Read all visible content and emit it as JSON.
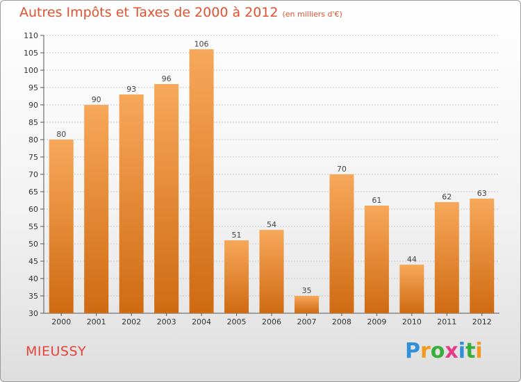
{
  "title": "Autres Impôts et Taxes de 2000 à 2012",
  "unit": "(en milliers d'€)",
  "town": "MIEUSSY",
  "brand": {
    "letters": [
      "P",
      "r",
      "o",
      "x",
      "i",
      "t",
      "i"
    ],
    "colors": [
      "#2f8fd8",
      "#f39a1e",
      "#3aae3a",
      "#e73a8a",
      "#2f8fd8",
      "#3aae3a",
      "#f39a1e"
    ]
  },
  "colors": {
    "title": "#e0522e",
    "bar_top": "#f7a85a",
    "bar_bottom": "#cf6a12",
    "grid": "#c8c8c8"
  },
  "chart_data": {
    "type": "bar",
    "title": "Autres Impôts et Taxes de 2000 à 2012",
    "xlabel": "",
    "ylabel": "",
    "categories": [
      "2000",
      "2001",
      "2002",
      "2003",
      "2004",
      "2005",
      "2006",
      "2007",
      "2008",
      "2009",
      "2010",
      "2011",
      "2012"
    ],
    "values": [
      80,
      90,
      93,
      96,
      106,
      51,
      54,
      35,
      70,
      61,
      44,
      62,
      63
    ],
    "ylim": [
      30,
      110
    ],
    "yticks": [
      30,
      35,
      40,
      45,
      50,
      55,
      60,
      65,
      70,
      75,
      80,
      85,
      90,
      95,
      100,
      105,
      110
    ],
    "grid": true,
    "legend": "none"
  }
}
